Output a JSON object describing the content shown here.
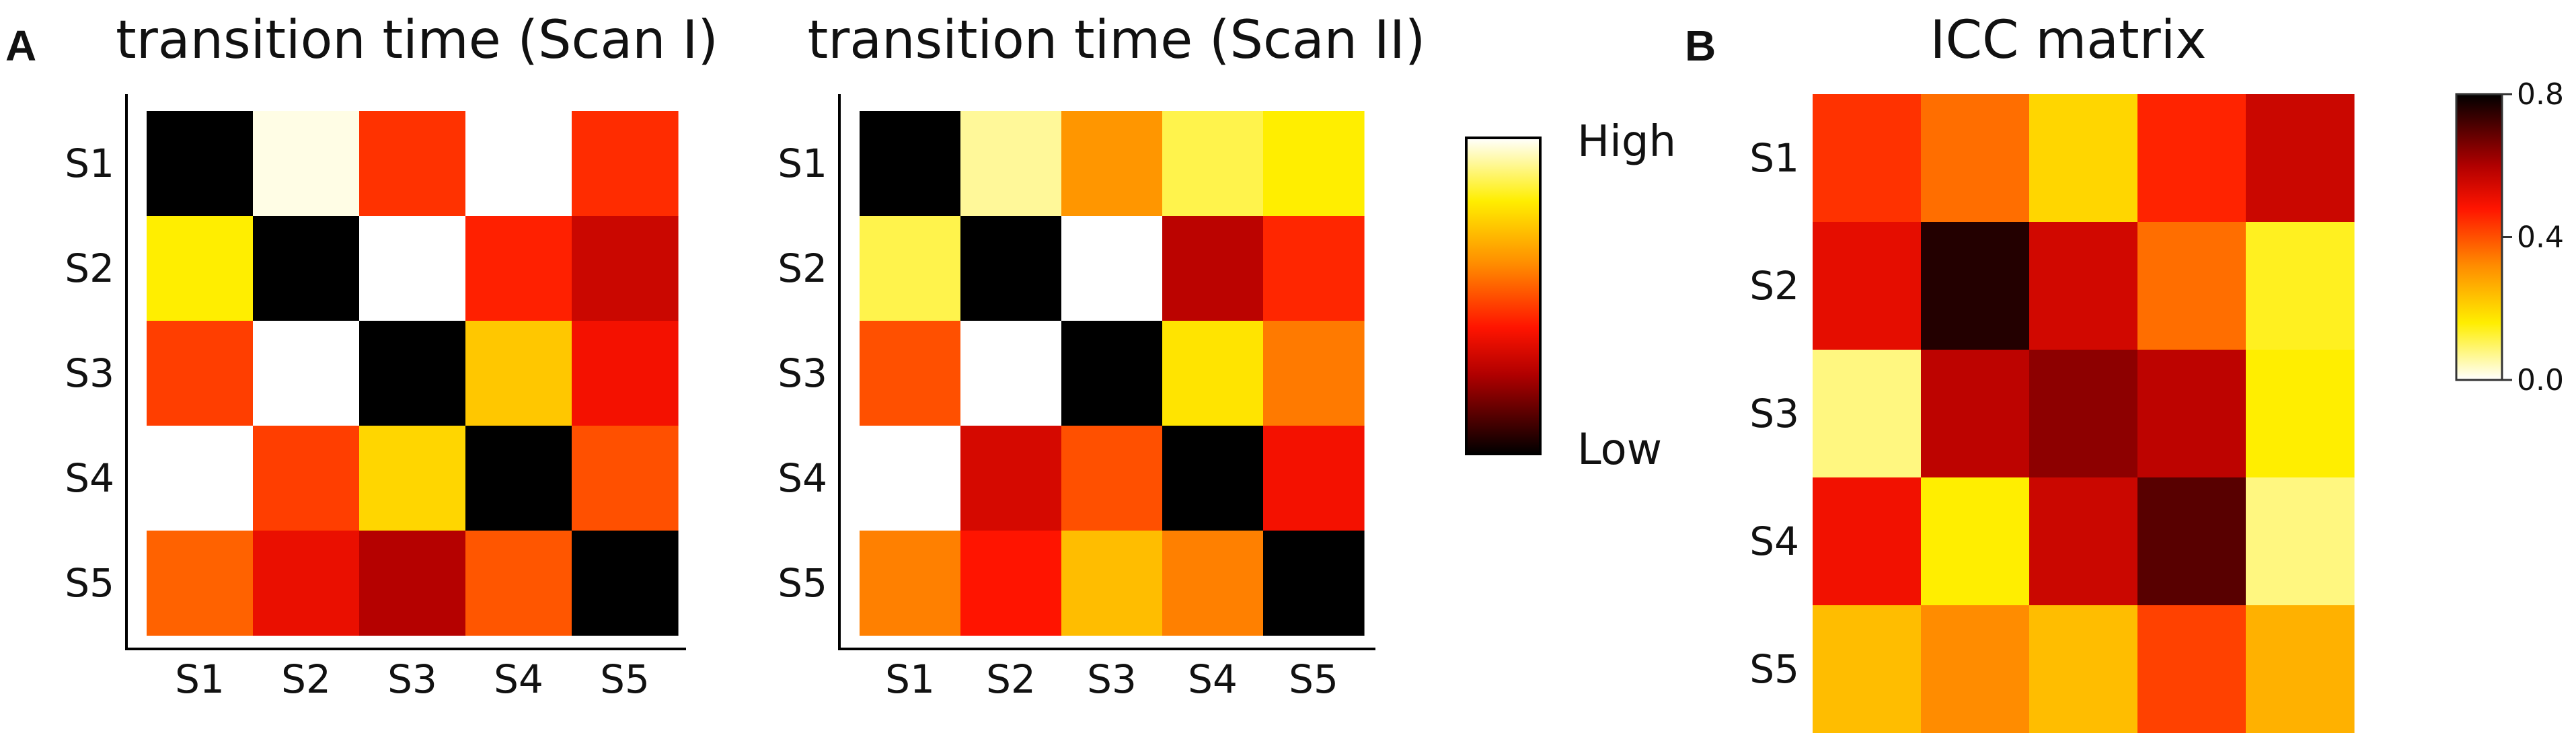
{
  "panels": {
    "a_letter": "A",
    "b_letter": "B"
  },
  "chart_data": [
    {
      "type": "heatmap",
      "title": "transition time (Scan I)",
      "rows": [
        "S1",
        "S2",
        "S3",
        "S4",
        "S5"
      ],
      "columns": [
        "S1",
        "S2",
        "S3",
        "S4",
        "S5"
      ],
      "colormap": "hot",
      "scale": "relative",
      "values": [
        [
          0.0,
          0.98,
          0.45,
          1.0,
          0.44
        ],
        [
          0.8,
          0.0,
          1.0,
          0.42,
          0.3
        ],
        [
          0.47,
          1.0,
          0.0,
          0.72,
          0.38
        ],
        [
          1.0,
          0.47,
          0.75,
          0.0,
          0.5
        ],
        [
          0.53,
          0.36,
          0.26,
          0.51,
          0.0
        ]
      ]
    },
    {
      "type": "heatmap",
      "title": "transition time (Scan II)",
      "rows": [
        "S1",
        "S2",
        "S3",
        "S4",
        "S5"
      ],
      "columns": [
        "S1",
        "S2",
        "S3",
        "S4",
        "S5"
      ],
      "colormap": "hot",
      "scale": "relative",
      "values": [
        [
          0.0,
          0.92,
          0.62,
          0.86,
          0.8
        ],
        [
          0.86,
          0.0,
          1.0,
          0.27,
          0.43
        ],
        [
          0.5,
          1.0,
          0.0,
          0.78,
          0.57
        ],
        [
          1.0,
          0.32,
          0.5,
          0.0,
          0.38
        ],
        [
          0.58,
          0.4,
          0.7,
          0.58,
          0.0
        ]
      ]
    },
    {
      "type": "heatmap",
      "title": "ICC matrix",
      "rows": [
        "S1",
        "S2",
        "S3",
        "S4",
        "S5"
      ],
      "columns": [
        "",
        "",
        "",
        "",
        ""
      ],
      "colormap": "hot_r",
      "vmin": 0.0,
      "vmax": 0.8,
      "values": [
        [
          0.44,
          0.36,
          0.2,
          0.46,
          0.56
        ],
        [
          0.52,
          0.76,
          0.55,
          0.36,
          0.14
        ],
        [
          0.08,
          0.58,
          0.64,
          0.58,
          0.16
        ],
        [
          0.5,
          0.16,
          0.56,
          0.7,
          0.08
        ],
        [
          0.24,
          0.32,
          0.24,
          0.42,
          0.26
        ]
      ]
    }
  ],
  "colorbar_relative": {
    "high_label": "High",
    "low_label": "Low"
  },
  "colorbar_icc": {
    "ticks": [
      "0.8",
      "0.4",
      "0.0"
    ],
    "tick_values": [
      0.8,
      0.4,
      0.0
    ]
  }
}
